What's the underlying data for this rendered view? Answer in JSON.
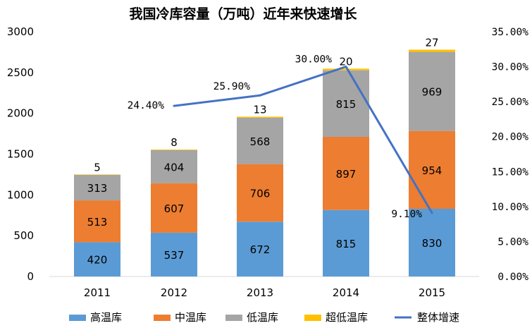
{
  "chart_data": {
    "type": "bar",
    "stacked": true,
    "title": "我国冷库容量（万吨）近年来快速增长",
    "categories": [
      "2011",
      "2012",
      "2013",
      "2014",
      "2015"
    ],
    "series": [
      {
        "name": "高温库",
        "color": "#5B9BD5",
        "values": [
          420,
          537,
          672,
          815,
          830
        ]
      },
      {
        "name": "中温库",
        "color": "#ED7D31",
        "values": [
          513,
          607,
          706,
          897,
          954
        ]
      },
      {
        "name": "低温库",
        "color": "#A5A5A5",
        "values": [
          313,
          404,
          568,
          815,
          969
        ]
      },
      {
        "name": "超低温库",
        "color": "#FFC000",
        "values": [
          5,
          8,
          13,
          20,
          27
        ]
      }
    ],
    "line_series": {
      "name": "整体增速",
      "color": "#4472C4",
      "axis": "right",
      "values": [
        24.4,
        25.9,
        30.0,
        9.1
      ],
      "categories": [
        "2012",
        "2013",
        "2014",
        "2015"
      ],
      "labels": [
        "24.40%",
        "25.90%",
        "30.00%",
        "9.10%"
      ]
    },
    "y_left": {
      "min": 0,
      "max": 3000,
      "ticks": [
        "0",
        "500",
        "1000",
        "1500",
        "2000",
        "2500",
        "3000"
      ]
    },
    "y_right": {
      "min": 0,
      "max": 35,
      "ticks": [
        "0.00%",
        "5.00%",
        "10.00%",
        "15.00%",
        "20.00%",
        "25.00%",
        "30.00%",
        "35.00%"
      ]
    },
    "grid": false,
    "legend_position": "bottom"
  }
}
